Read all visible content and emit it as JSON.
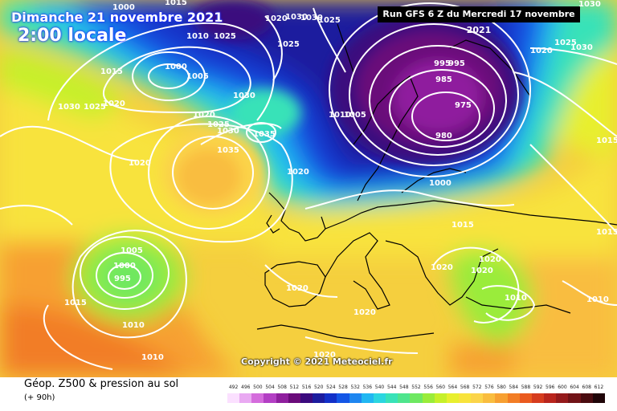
{
  "header": {
    "date_text": "Dimanche 21 novembre 2021",
    "time_text": "2:00 locale",
    "run_text": "Run GFS 6 Z du Mercredi 17 novembre 2021"
  },
  "copyright": "Copyright © 2021 Meteociel.fr",
  "legend": {
    "title": "Géop. Z500 & pression au sol",
    "subtitle": "(+ 90h)",
    "scale_values": [
      "492",
      "496",
      "500",
      "504",
      "508",
      "512",
      "516",
      "520",
      "524",
      "528",
      "532",
      "536",
      "540",
      "544",
      "548",
      "552",
      "556",
      "560",
      "564",
      "568",
      "572",
      "576",
      "580",
      "584",
      "588",
      "592",
      "596",
      "600",
      "604",
      "608",
      "612"
    ],
    "scale_colors": [
      "#fbe0ff",
      "#e9a9f2",
      "#d46cdc",
      "#b33fc4",
      "#8f1f9e",
      "#6a0b7a",
      "#3b0a7e",
      "#1c1c9e",
      "#1230c8",
      "#1456e6",
      "#1e86f0",
      "#21b7f2",
      "#2bd6e0",
      "#38e2b8",
      "#4ee58d",
      "#6ee861",
      "#9aec3a",
      "#c6f02a",
      "#e8ef2e",
      "#f8e33c",
      "#fbd44a",
      "#f9bd3f",
      "#f7a032",
      "#f27d25",
      "#ea5a1f",
      "#d63c1e",
      "#b9251d",
      "#951a1c",
      "#711317",
      "#4a0c10",
      "#1f0508"
    ]
  },
  "isobars": [
    {
      "label": "1000",
      "pos": "upper-left"
    },
    {
      "label": "1015",
      "pos": "upper-left"
    },
    {
      "label": "1010",
      "pos": "upper-left"
    },
    {
      "label": "1020",
      "pos": "top"
    },
    {
      "label": "1030",
      "pos": "top"
    },
    {
      "label": "1025",
      "pos": "top"
    },
    {
      "label": "1000",
      "pos": "upper-left"
    },
    {
      "label": "1005",
      "pos": "upper-left"
    },
    {
      "label": "1015",
      "pos": "upper-left"
    },
    {
      "label": "1020",
      "pos": "upper-left"
    },
    {
      "label": "1030",
      "pos": "left"
    },
    {
      "label": "1025",
      "pos": "left"
    },
    {
      "label": "1025",
      "pos": "center"
    },
    {
      "label": "1030",
      "pos": "center"
    },
    {
      "label": "1020",
      "pos": "center"
    },
    {
      "label": "1025",
      "pos": "center"
    },
    {
      "label": "1030",
      "pos": "center"
    },
    {
      "label": "1035",
      "pos": "center"
    },
    {
      "label": "1035",
      "pos": "center"
    },
    {
      "label": "1020",
      "pos": "left"
    },
    {
      "label": "1020",
      "pos": "center"
    },
    {
      "label": "1010",
      "pos": "north-sea"
    },
    {
      "label": "1005",
      "pos": "north-sea"
    },
    {
      "label": "995",
      "pos": "scandinavia"
    },
    {
      "label": "995",
      "pos": "scandinavia"
    },
    {
      "label": "985",
      "pos": "scandinavia"
    },
    {
      "label": "975",
      "pos": "scandinavia"
    },
    {
      "label": "980",
      "pos": "scandinavia"
    },
    {
      "label": "1000",
      "pos": "baltic"
    },
    {
      "label": "1015",
      "pos": "east"
    },
    {
      "label": "1020",
      "pos": "top-right"
    },
    {
      "label": "1025",
      "pos": "top-right"
    },
    {
      "label": "1030",
      "pos": "top-right"
    },
    {
      "label": "1030",
      "pos": "top-right"
    },
    {
      "label": "1015",
      "pos": "right"
    },
    {
      "label": "1015",
      "pos": "right"
    },
    {
      "label": "1005",
      "pos": "atlantic-low"
    },
    {
      "label": "1000",
      "pos": "atlantic-low"
    },
    {
      "label": "995",
      "pos": "atlantic-low"
    },
    {
      "label": "1015",
      "pos": "atlantic"
    },
    {
      "label": "1010",
      "pos": "atlantic"
    },
    {
      "label": "1010",
      "pos": "atlantic"
    },
    {
      "label": "1020",
      "pos": "france"
    },
    {
      "label": "1020",
      "pos": "balkans"
    },
    {
      "label": "1020",
      "pos": "balkans"
    },
    {
      "label": "1020",
      "pos": "balkans"
    },
    {
      "label": "1020",
      "pos": "mediterranean"
    },
    {
      "label": "1020",
      "pos": "mediterranean"
    },
    {
      "label": "1010",
      "pos": "turkey"
    },
    {
      "label": "1010",
      "pos": "east"
    },
    {
      "label": "1025",
      "pos": "top"
    },
    {
      "label": "1030",
      "pos": "top"
    }
  ]
}
